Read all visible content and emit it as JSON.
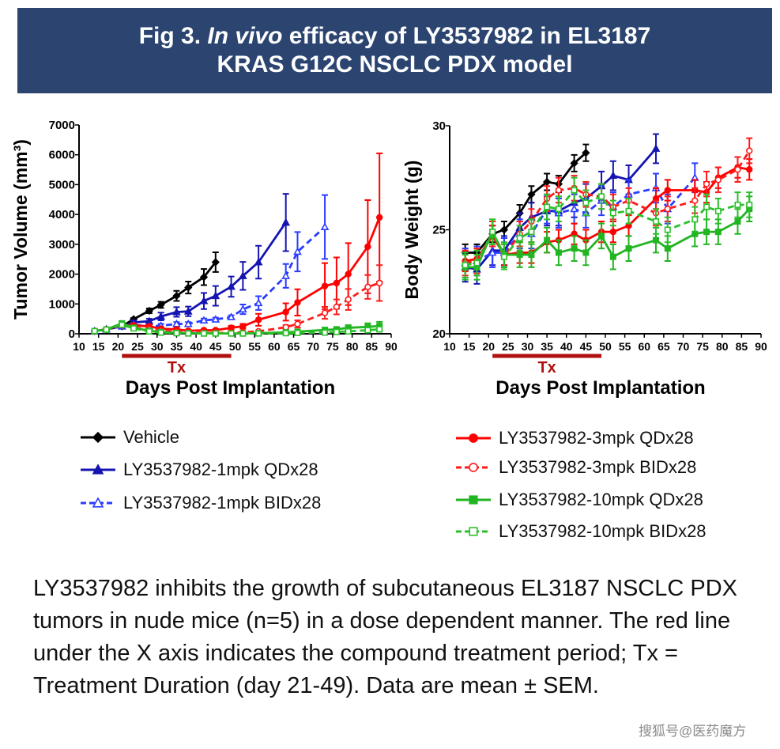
{
  "header": {
    "title_line1_pre": "Fig 3. ",
    "title_line1_italic": "In vivo",
    "title_line1_post": " efficacy of LY3537982 in EL3187",
    "title_line2": "KRAS G12C NSCLC PDX model",
    "background_color": "#2b4470"
  },
  "legend": {
    "items": [
      {
        "label": "Vehicle",
        "color": "#000000",
        "marker": "diamond-filled",
        "dash": false
      },
      {
        "label": "LY3537982-1mpk QDx28",
        "color": "#1414b0",
        "marker": "triangle-filled",
        "dash": false
      },
      {
        "label": "LY3537982-1mpk BIDx28",
        "color": "#2a3cff",
        "marker": "triangle-open",
        "dash": true
      },
      {
        "label": "LY3537982-3mpk QDx28",
        "color": "#ff0000",
        "marker": "circle-filled",
        "dash": false
      },
      {
        "label": "LY3537982-3mpk BIDx28",
        "color": "#ff1a1a",
        "marker": "circle-open",
        "dash": true
      },
      {
        "label": "LY3537982-10mpk QDx28",
        "color": "#22b522",
        "marker": "square-filled",
        "dash": false
      },
      {
        "label": "LY3537982-10mpk BIDx28",
        "color": "#2ac02a",
        "marker": "square-open",
        "dash": true
      }
    ]
  },
  "caption": "LY3537982 inhibits the growth of subcutaneous EL3187 NSCLC PDX tumors in nude mice (n=5) in a dose dependent manner. The red line under the X axis indicates the compound treatment period; Tx = Treatment Duration (day 21-49). Data are mean ± SEM.",
  "watermark": "搜狐号@医药魔方",
  "chart_data": [
    {
      "type": "line",
      "ylabel": "Tumor Volume (mm³)",
      "xlabel": "Days Post Implantation",
      "xlim": [
        10,
        90
      ],
      "xticks": [
        "10",
        "15",
        "20",
        "25",
        "30",
        "35",
        "40",
        "45",
        "50",
        "55",
        "60",
        "65",
        "70",
        "75",
        "80",
        "85",
        "90"
      ],
      "ylim": [
        0,
        7000
      ],
      "yticks": [
        "0",
        "1000",
        "2000",
        "3000",
        "4000",
        "5000",
        "6000",
        "7000"
      ],
      "treatment_bar": {
        "label": "Tx",
        "start": 21,
        "end": 49,
        "color": "#b01010"
      },
      "error_bars": "SEM",
      "series": [
        {
          "name": "Vehicle",
          "x": [
            14,
            17,
            21,
            24,
            28,
            31,
            35,
            38,
            42,
            45
          ],
          "y": [
            90,
            150,
            250,
            490,
            770,
            970,
            1270,
            1550,
            1900,
            2400
          ],
          "sem": [
            30,
            30,
            40,
            40,
            80,
            100,
            170,
            200,
            270,
            330
          ]
        },
        {
          "name": "LY3537982-1mpk QDx28",
          "x": [
            14,
            17,
            21,
            24,
            28,
            31,
            35,
            38,
            42,
            45,
            49,
            52,
            56,
            63
          ],
          "y": [
            90,
            150,
            250,
            380,
            420,
            580,
            730,
            750,
            1100,
            1270,
            1580,
            1940,
            2400,
            3730
          ],
          "sem": [
            30,
            30,
            40,
            60,
            80,
            130,
            160,
            160,
            270,
            330,
            340,
            470,
            550,
            960
          ]
        },
        {
          "name": "LY3537982-1mpk BIDx28",
          "x": [
            14,
            17,
            21,
            24,
            28,
            31,
            35,
            38,
            42,
            45,
            49,
            52,
            56,
            63,
            66,
            73
          ],
          "y": [
            90,
            150,
            250,
            300,
            250,
            270,
            330,
            330,
            450,
            480,
            560,
            820,
            1030,
            1940,
            2750,
            3580
          ],
          "sem": [
            30,
            30,
            40,
            50,
            60,
            60,
            60,
            60,
            60,
            60,
            60,
            160,
            230,
            400,
            660,
            1070
          ]
        },
        {
          "name": "LY3537982-3mpk QDx28",
          "x": [
            14,
            17,
            21,
            24,
            28,
            31,
            35,
            38,
            42,
            45,
            49,
            52,
            56,
            63,
            66,
            73,
            76,
            79,
            84,
            87
          ],
          "y": [
            90,
            150,
            300,
            280,
            250,
            170,
            150,
            100,
            120,
            120,
            200,
            250,
            470,
            730,
            1050,
            1600,
            1700,
            2000,
            2920,
            3900
          ],
          "sem": [
            30,
            30,
            60,
            50,
            50,
            40,
            40,
            30,
            30,
            40,
            70,
            80,
            200,
            290,
            440,
            770,
            860,
            1040,
            1560,
            2150
          ]
        },
        {
          "name": "LY3537982-3mpk BIDx28",
          "x": [
            14,
            17,
            21,
            24,
            28,
            31,
            35,
            38,
            42,
            45,
            49,
            52,
            56,
            63,
            66,
            73,
            76,
            79,
            84,
            87
          ],
          "y": [
            90,
            150,
            280,
            200,
            150,
            100,
            60,
            40,
            30,
            30,
            30,
            50,
            80,
            220,
            330,
            700,
            900,
            1150,
            1570,
            1700
          ],
          "sem": [
            30,
            30,
            40,
            40,
            30,
            30,
            20,
            20,
            20,
            20,
            20,
            20,
            30,
            70,
            120,
            200,
            250,
            350,
            400,
            600
          ]
        },
        {
          "name": "LY3537982-10mpk QDx28",
          "x": [
            14,
            17,
            21,
            24,
            28,
            31,
            35,
            38,
            42,
            45,
            49,
            52,
            56,
            63,
            66,
            73,
            76,
            79,
            84,
            87
          ],
          "y": [
            90,
            140,
            350,
            200,
            100,
            60,
            30,
            20,
            10,
            10,
            10,
            10,
            20,
            50,
            70,
            130,
            150,
            200,
            230,
            260
          ],
          "sem": [
            30,
            30,
            60,
            50,
            30,
            20,
            10,
            10,
            5,
            5,
            5,
            5,
            10,
            20,
            30,
            60,
            70,
            90,
            120,
            140
          ]
        },
        {
          "name": "LY3537982-10mpk BIDx28",
          "x": [
            14,
            17,
            21,
            24,
            28,
            31,
            35,
            38,
            42,
            45,
            49,
            52,
            56,
            63,
            66,
            73,
            76,
            79,
            84,
            87
          ],
          "y": [
            90,
            140,
            300,
            180,
            80,
            40,
            20,
            10,
            10,
            10,
            10,
            10,
            10,
            20,
            30,
            40,
            60,
            80,
            120,
            150
          ],
          "sem": [
            30,
            30,
            60,
            50,
            30,
            20,
            10,
            5,
            5,
            5,
            5,
            5,
            5,
            10,
            20,
            30,
            30,
            50,
            70,
            80
          ]
        }
      ]
    },
    {
      "type": "line",
      "ylabel": "Body Weight (g)",
      "xlabel": "Days Post Implantation",
      "xlim": [
        10,
        90
      ],
      "xticks": [
        "10",
        "15",
        "20",
        "25",
        "30",
        "35",
        "40",
        "45",
        "50",
        "55",
        "60",
        "65",
        "70",
        "75",
        "80",
        "85",
        "90"
      ],
      "ylim": [
        20,
        30
      ],
      "yticks": [
        "20",
        "25",
        "30"
      ],
      "treatment_bar": {
        "label": "Tx",
        "start": 21,
        "end": 49,
        "color": "#b01010"
      },
      "error_bars": "SEM",
      "series": [
        {
          "name": "Vehicle",
          "x": [
            14,
            17,
            21,
            24,
            28,
            31,
            35,
            38,
            42,
            45
          ],
          "y": [
            23.9,
            23.9,
            24.8,
            25.0,
            25.8,
            26.7,
            27.3,
            27.2,
            28.2,
            28.7
          ],
          "sem": 0.4
        },
        {
          "name": "LY3537982-1mpk QDx28",
          "x": [
            14,
            17,
            21,
            24,
            28,
            31,
            35,
            38,
            42,
            45,
            49,
            52,
            56,
            63
          ],
          "y": [
            23.2,
            23.1,
            24.0,
            24.0,
            25.1,
            25.6,
            25.9,
            25.9,
            26.3,
            26.5,
            27.1,
            27.6,
            27.4,
            28.9
          ],
          "sem": 0.7
        },
        {
          "name": "LY3537982-1mpk BIDx28",
          "x": [
            14,
            17,
            21,
            24,
            28,
            31,
            35,
            38,
            42,
            45,
            49,
            52,
            56,
            63,
            66,
            73
          ],
          "y": [
            23.4,
            23.5,
            23.9,
            23.9,
            24.8,
            24.8,
            26.0,
            25.8,
            26.0,
            25.8,
            26.4,
            26.1,
            26.7,
            27.0,
            26.0,
            27.5
          ],
          "sem": 0.7
        },
        {
          "name": "LY3537982-3mpk QDx28",
          "x": [
            14,
            17,
            21,
            24,
            28,
            31,
            35,
            38,
            42,
            45,
            49,
            52,
            56,
            63,
            66,
            73,
            76,
            79,
            84,
            87
          ],
          "y": [
            23.5,
            23.6,
            24.7,
            23.8,
            23.9,
            23.9,
            24.4,
            24.5,
            24.8,
            24.5,
            24.9,
            24.9,
            25.2,
            26.5,
            26.9,
            26.9,
            26.8,
            27.5,
            28.0,
            27.9
          ],
          "sem": 0.5
        },
        {
          "name": "LY3537982-3mpk BIDx28",
          "x": [
            14,
            17,
            21,
            24,
            28,
            31,
            35,
            38,
            42,
            45,
            49,
            52,
            56,
            63,
            66,
            73,
            76,
            79,
            84,
            87
          ],
          "y": [
            23.4,
            23.5,
            24.8,
            23.7,
            24.8,
            25.4,
            26.5,
            26.9,
            27.0,
            26.7,
            26.6,
            26.1,
            26.4,
            25.8,
            26.0,
            26.4,
            27.2,
            27.4,
            27.9,
            28.8
          ],
          "sem": 0.6
        },
        {
          "name": "LY3537982-10mpk QDx28",
          "x": [
            14,
            17,
            21,
            24,
            28,
            31,
            35,
            38,
            42,
            45,
            49,
            52,
            56,
            63,
            66,
            73,
            76,
            79,
            84,
            87
          ],
          "y": [
            23.2,
            23.2,
            24.9,
            23.8,
            23.8,
            23.8,
            24.5,
            23.9,
            24.1,
            23.9,
            24.7,
            23.7,
            24.1,
            24.5,
            24.1,
            24.8,
            24.9,
            24.9,
            25.4,
            26.0
          ],
          "sem": 0.6
        },
        {
          "name": "LY3537982-10mpk BIDx28",
          "x": [
            14,
            17,
            21,
            24,
            28,
            31,
            35,
            38,
            42,
            45,
            49,
            52,
            56,
            63,
            66,
            73,
            76,
            79,
            84,
            87
          ],
          "y": [
            23.3,
            23.4,
            24.9,
            23.7,
            24.6,
            24.9,
            26.1,
            26.0,
            26.9,
            26.3,
            26.6,
            25.8,
            25.9,
            25.4,
            25.0,
            25.5,
            26.1,
            25.9,
            26.2,
            26.2
          ],
          "sem": 0.6
        }
      ]
    }
  ]
}
